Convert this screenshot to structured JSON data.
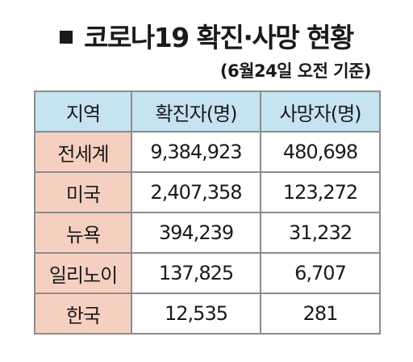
{
  "title": "코로나19 확진·사망 현황",
  "subtitle": "(6월24일 오전 기준)",
  "table": {
    "headers": [
      "지역",
      "확진자(명)",
      "사망자(명)"
    ],
    "rows": [
      {
        "region": "전세계",
        "confirmed": "9,384,923",
        "deaths": "480,698"
      },
      {
        "region": "미국",
        "confirmed": "2,407,358",
        "deaths": "123,272"
      },
      {
        "region": "뉴욕",
        "confirmed": "394,239",
        "deaths": "31,232"
      },
      {
        "region": "일리노이",
        "confirmed": "137,825",
        "deaths": "6,707"
      },
      {
        "region": "한국",
        "confirmed": "12,535",
        "deaths": "281"
      }
    ]
  },
  "colors": {
    "header_bg": "#c5e3f1",
    "region_bg": "#f5d0c1",
    "border": "#8c8c8c"
  }
}
